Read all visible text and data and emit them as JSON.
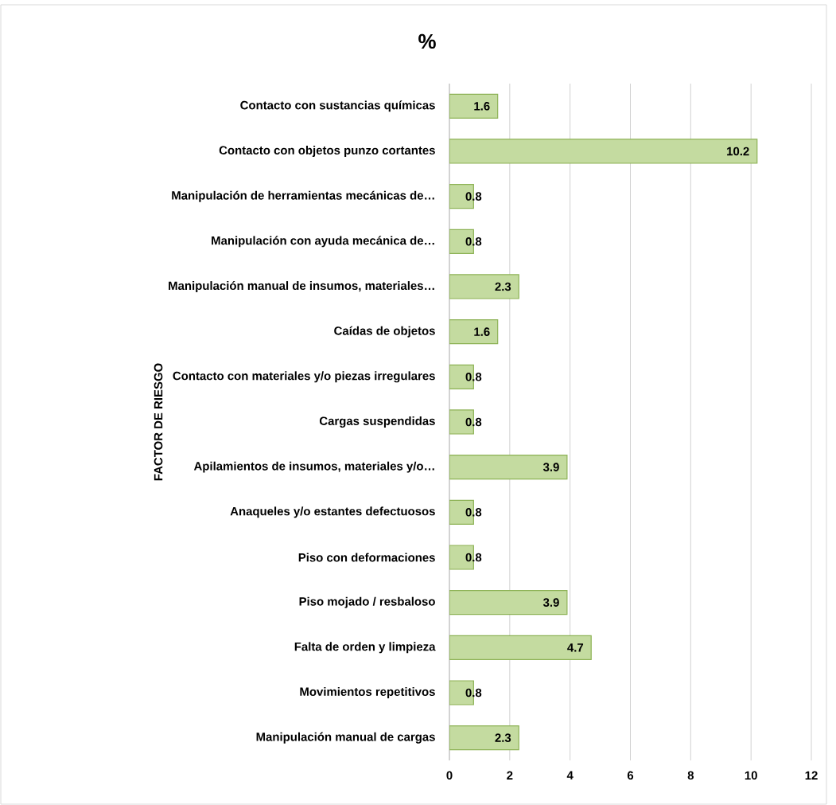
{
  "chart_data": {
    "type": "bar",
    "orientation": "horizontal",
    "title": "%",
    "ylabel": "FACTOR DE RIESGO",
    "categories": [
      "Contacto con sustancias químicas",
      "Contacto con objetos punzo cortantes",
      "Manipulación de herramientas mecánicas de…",
      "Manipulación con ayuda mecánica de…",
      "Manipulación manual de insumos, materiales…",
      "Caídas de objetos",
      "Contacto con materiales y/o piezas irregulares",
      "Cargas suspendidas",
      "Apilamientos de insumos, materiales y/o…",
      "Anaqueles y/o estantes defectuosos",
      "Piso con deformaciones",
      "Piso mojado / resbaloso",
      "Falta de orden y limpieza",
      "Movimientos repetitivos",
      "Manipulación manual de cargas"
    ],
    "values": [
      1.6,
      10.2,
      0.8,
      0.8,
      2.3,
      1.6,
      0.8,
      0.8,
      3.9,
      0.8,
      0.8,
      3.9,
      4.7,
      0.8,
      2.3
    ],
    "color": "#c4dba0",
    "xlim": [
      0,
      12
    ],
    "xticks": [
      0,
      2,
      4,
      6,
      8,
      10,
      12
    ],
    "grid": "x",
    "data_labels": true
  }
}
